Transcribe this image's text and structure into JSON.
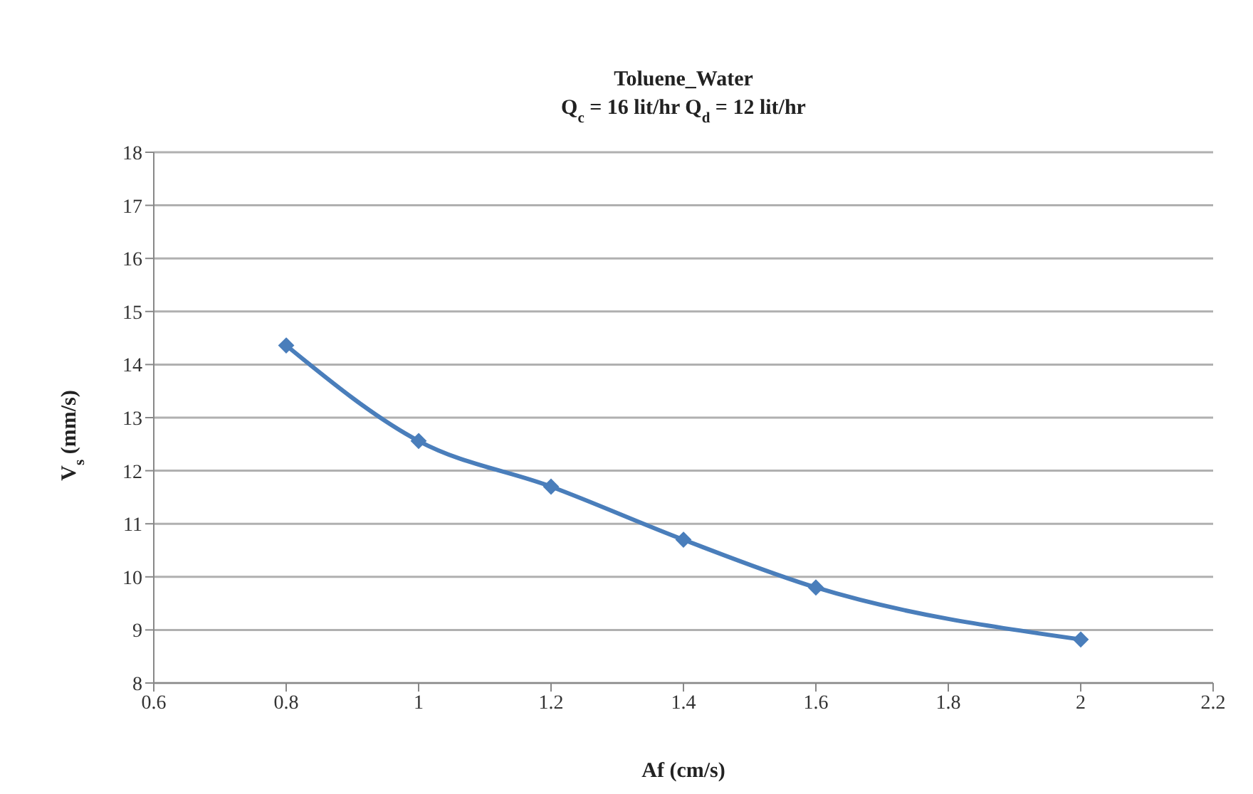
{
  "chart_data": {
    "type": "line",
    "title": "Toluene_Water",
    "subtitle": "Q$_{c}$ = 16 lit/hr   Q$_{d}$ = 12 lit/hr",
    "xlabel": "Af  (cm/s)",
    "ylabel": "V$_{s}$ (mm/s)",
    "x": [
      0.8,
      1.0,
      1.2,
      1.4,
      1.6,
      2.0
    ],
    "series": [
      {
        "color": "#4a7ebb",
        "values": [
          14.36,
          12.56,
          11.7,
          10.7,
          9.8,
          8.82
        ]
      }
    ],
    "xlim": [
      0.6,
      2.2
    ],
    "xticks": [
      0.6,
      0.8,
      1,
      1.2,
      1.4,
      1.6,
      1.8,
      2,
      2.2
    ],
    "ylim": [
      8,
      18
    ],
    "yticks": [
      8,
      9,
      10,
      11,
      12,
      13,
      14,
      15,
      16,
      17,
      18
    ],
    "grid": "y",
    "legend": false,
    "marker": "diamond",
    "line_style": "solid"
  }
}
